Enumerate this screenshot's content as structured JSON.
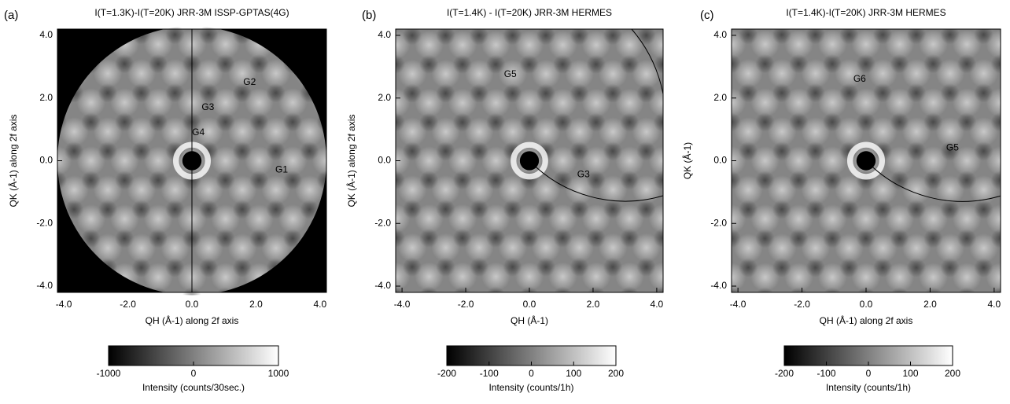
{
  "chart_data": [
    {
      "type": "heatmap",
      "panel": "(a)",
      "title": "I(T=1.3K)-I(T=20K) JRR-3M ISSP-GPTAS(4G)",
      "xlabel": "QH (Å-1) along 2f axis",
      "ylabel": "QK (Å-1) along 2f axis",
      "xlim": [
        -4.2,
        4.2
      ],
      "ylim": [
        -4.2,
        4.2
      ],
      "xticks": [
        {
          "value": -4,
          "label": "-4.0"
        },
        {
          "value": -2,
          "label": "-2.0"
        },
        {
          "value": 0,
          "label": "0.0"
        },
        {
          "value": 2,
          "label": "2.0"
        },
        {
          "value": 4,
          "label": "4.0"
        }
      ],
      "yticks": [
        {
          "value": -4,
          "label": "-4.0"
        },
        {
          "value": -2,
          "label": "-2.0"
        },
        {
          "value": 0,
          "label": "0.0"
        },
        {
          "value": 2,
          "label": "2.0"
        },
        {
          "value": 4,
          "label": "4.0"
        }
      ],
      "clim": [
        -1000,
        1000
      ],
      "cticks": [
        -1000,
        0,
        1000
      ],
      "colorbar_label": "Intensity (counts/30sec.)",
      "annotations": [
        {
          "text": "G2",
          "x": 1.8,
          "y": 2.5
        },
        {
          "text": "G3",
          "x": 0.5,
          "y": 1.7
        },
        {
          "text": "G4",
          "x": 0.2,
          "y": 0.9
        },
        {
          "text": "G1",
          "x": 2.8,
          "y": -0.3
        }
      ]
    },
    {
      "type": "heatmap",
      "panel": "(b)",
      "title": "I(T=1.4K) - I(T=20K) JRR-3M HERMES",
      "xlabel": "QH (Å-1)",
      "ylabel": "QK (Å-1) along 2f axis",
      "xlim": [
        -4.2,
        4.2
      ],
      "ylim": [
        -4.2,
        4.2
      ],
      "xticks": [
        {
          "value": -4,
          "label": "-4.0"
        },
        {
          "value": -2,
          "label": "-2.0"
        },
        {
          "value": 0,
          "label": "0.0"
        },
        {
          "value": 2,
          "label": "2.0"
        },
        {
          "value": 4,
          "label": "4.0"
        }
      ],
      "yticks": [
        {
          "value": -4,
          "label": "-4.0"
        },
        {
          "value": -2,
          "label": "-2.0"
        },
        {
          "value": 0,
          "label": "0.0"
        },
        {
          "value": 2,
          "label": "2.0"
        },
        {
          "value": 4,
          "label": "4.0"
        }
      ],
      "clim": [
        -200,
        200
      ],
      "cticks": [
        -200,
        -100,
        0,
        100,
        200
      ],
      "colorbar_label": "Intensity (counts/1h)",
      "annotations": [
        {
          "text": "G5",
          "x": -0.6,
          "y": 2.75
        },
        {
          "text": "G3",
          "x": 1.7,
          "y": -0.45
        }
      ]
    },
    {
      "type": "heatmap",
      "panel": "(c)",
      "title": "I(T=1.4K)-I(T=20K) JRR-3M HERMES",
      "xlabel": "QH (Å-1) along 2f axis",
      "ylabel": "QK (Å-1)",
      "xlim": [
        -4.2,
        4.2
      ],
      "ylim": [
        -4.2,
        4.2
      ],
      "xticks": [
        {
          "value": -4,
          "label": "-4.0"
        },
        {
          "value": -2,
          "label": "-2.0"
        },
        {
          "value": 0,
          "label": "0.0"
        },
        {
          "value": 2,
          "label": "2.0"
        },
        {
          "value": 4,
          "label": "4.0"
        }
      ],
      "yticks": [
        {
          "value": -4,
          "label": "-4.0"
        },
        {
          "value": -2,
          "label": "-2.0"
        },
        {
          "value": 0,
          "label": "0.0"
        },
        {
          "value": 2,
          "label": "2.0"
        },
        {
          "value": 4,
          "label": "4.0"
        }
      ],
      "clim": [
        -200,
        200
      ],
      "cticks": [
        -200,
        -100,
        0,
        100,
        200
      ],
      "colorbar_label": "Intensity (counts/1h)",
      "annotations": [
        {
          "text": "G6",
          "x": -0.2,
          "y": 2.6
        },
        {
          "text": "G5",
          "x": 2.7,
          "y": 0.4
        }
      ]
    }
  ]
}
